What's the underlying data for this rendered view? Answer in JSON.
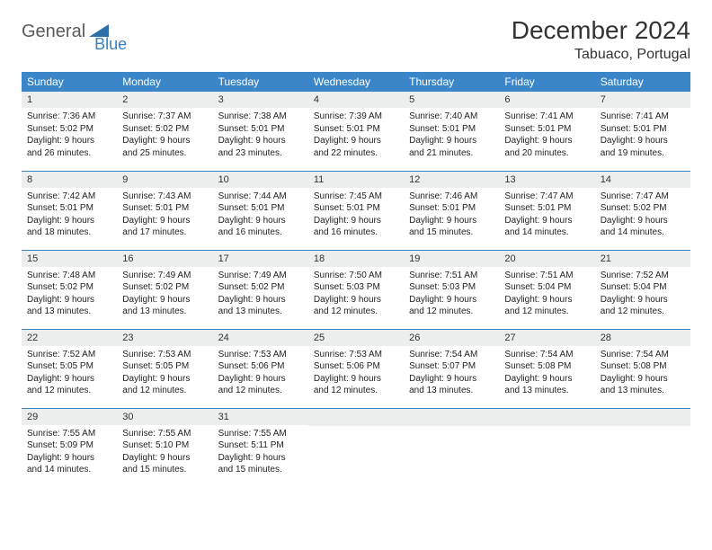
{
  "logo": {
    "text1": "General",
    "text2": "Blue"
  },
  "title": "December 2024",
  "location": "Tabuaco, Portugal",
  "colors": {
    "header_bg": "#3a86c8",
    "header_text": "#ffffff",
    "daynum_bg": "#eceded",
    "border": "#3a7fbf",
    "logo_gray": "#5a5a5a",
    "logo_blue": "#3a7fbf"
  },
  "weekdays": [
    "Sunday",
    "Monday",
    "Tuesday",
    "Wednesday",
    "Thursday",
    "Friday",
    "Saturday"
  ],
  "weeks": [
    [
      {
        "day": "1",
        "sunrise": "Sunrise: 7:36 AM",
        "sunset": "Sunset: 5:02 PM",
        "dl1": "Daylight: 9 hours",
        "dl2": "and 26 minutes."
      },
      {
        "day": "2",
        "sunrise": "Sunrise: 7:37 AM",
        "sunset": "Sunset: 5:02 PM",
        "dl1": "Daylight: 9 hours",
        "dl2": "and 25 minutes."
      },
      {
        "day": "3",
        "sunrise": "Sunrise: 7:38 AM",
        "sunset": "Sunset: 5:01 PM",
        "dl1": "Daylight: 9 hours",
        "dl2": "and 23 minutes."
      },
      {
        "day": "4",
        "sunrise": "Sunrise: 7:39 AM",
        "sunset": "Sunset: 5:01 PM",
        "dl1": "Daylight: 9 hours",
        "dl2": "and 22 minutes."
      },
      {
        "day": "5",
        "sunrise": "Sunrise: 7:40 AM",
        "sunset": "Sunset: 5:01 PM",
        "dl1": "Daylight: 9 hours",
        "dl2": "and 21 minutes."
      },
      {
        "day": "6",
        "sunrise": "Sunrise: 7:41 AM",
        "sunset": "Sunset: 5:01 PM",
        "dl1": "Daylight: 9 hours",
        "dl2": "and 20 minutes."
      },
      {
        "day": "7",
        "sunrise": "Sunrise: 7:41 AM",
        "sunset": "Sunset: 5:01 PM",
        "dl1": "Daylight: 9 hours",
        "dl2": "and 19 minutes."
      }
    ],
    [
      {
        "day": "8",
        "sunrise": "Sunrise: 7:42 AM",
        "sunset": "Sunset: 5:01 PM",
        "dl1": "Daylight: 9 hours",
        "dl2": "and 18 minutes."
      },
      {
        "day": "9",
        "sunrise": "Sunrise: 7:43 AM",
        "sunset": "Sunset: 5:01 PM",
        "dl1": "Daylight: 9 hours",
        "dl2": "and 17 minutes."
      },
      {
        "day": "10",
        "sunrise": "Sunrise: 7:44 AM",
        "sunset": "Sunset: 5:01 PM",
        "dl1": "Daylight: 9 hours",
        "dl2": "and 16 minutes."
      },
      {
        "day": "11",
        "sunrise": "Sunrise: 7:45 AM",
        "sunset": "Sunset: 5:01 PM",
        "dl1": "Daylight: 9 hours",
        "dl2": "and 16 minutes."
      },
      {
        "day": "12",
        "sunrise": "Sunrise: 7:46 AM",
        "sunset": "Sunset: 5:01 PM",
        "dl1": "Daylight: 9 hours",
        "dl2": "and 15 minutes."
      },
      {
        "day": "13",
        "sunrise": "Sunrise: 7:47 AM",
        "sunset": "Sunset: 5:01 PM",
        "dl1": "Daylight: 9 hours",
        "dl2": "and 14 minutes."
      },
      {
        "day": "14",
        "sunrise": "Sunrise: 7:47 AM",
        "sunset": "Sunset: 5:02 PM",
        "dl1": "Daylight: 9 hours",
        "dl2": "and 14 minutes."
      }
    ],
    [
      {
        "day": "15",
        "sunrise": "Sunrise: 7:48 AM",
        "sunset": "Sunset: 5:02 PM",
        "dl1": "Daylight: 9 hours",
        "dl2": "and 13 minutes."
      },
      {
        "day": "16",
        "sunrise": "Sunrise: 7:49 AM",
        "sunset": "Sunset: 5:02 PM",
        "dl1": "Daylight: 9 hours",
        "dl2": "and 13 minutes."
      },
      {
        "day": "17",
        "sunrise": "Sunrise: 7:49 AM",
        "sunset": "Sunset: 5:02 PM",
        "dl1": "Daylight: 9 hours",
        "dl2": "and 13 minutes."
      },
      {
        "day": "18",
        "sunrise": "Sunrise: 7:50 AM",
        "sunset": "Sunset: 5:03 PM",
        "dl1": "Daylight: 9 hours",
        "dl2": "and 12 minutes."
      },
      {
        "day": "19",
        "sunrise": "Sunrise: 7:51 AM",
        "sunset": "Sunset: 5:03 PM",
        "dl1": "Daylight: 9 hours",
        "dl2": "and 12 minutes."
      },
      {
        "day": "20",
        "sunrise": "Sunrise: 7:51 AM",
        "sunset": "Sunset: 5:04 PM",
        "dl1": "Daylight: 9 hours",
        "dl2": "and 12 minutes."
      },
      {
        "day": "21",
        "sunrise": "Sunrise: 7:52 AM",
        "sunset": "Sunset: 5:04 PM",
        "dl1": "Daylight: 9 hours",
        "dl2": "and 12 minutes."
      }
    ],
    [
      {
        "day": "22",
        "sunrise": "Sunrise: 7:52 AM",
        "sunset": "Sunset: 5:05 PM",
        "dl1": "Daylight: 9 hours",
        "dl2": "and 12 minutes."
      },
      {
        "day": "23",
        "sunrise": "Sunrise: 7:53 AM",
        "sunset": "Sunset: 5:05 PM",
        "dl1": "Daylight: 9 hours",
        "dl2": "and 12 minutes."
      },
      {
        "day": "24",
        "sunrise": "Sunrise: 7:53 AM",
        "sunset": "Sunset: 5:06 PM",
        "dl1": "Daylight: 9 hours",
        "dl2": "and 12 minutes."
      },
      {
        "day": "25",
        "sunrise": "Sunrise: 7:53 AM",
        "sunset": "Sunset: 5:06 PM",
        "dl1": "Daylight: 9 hours",
        "dl2": "and 12 minutes."
      },
      {
        "day": "26",
        "sunrise": "Sunrise: 7:54 AM",
        "sunset": "Sunset: 5:07 PM",
        "dl1": "Daylight: 9 hours",
        "dl2": "and 13 minutes."
      },
      {
        "day": "27",
        "sunrise": "Sunrise: 7:54 AM",
        "sunset": "Sunset: 5:08 PM",
        "dl1": "Daylight: 9 hours",
        "dl2": "and 13 minutes."
      },
      {
        "day": "28",
        "sunrise": "Sunrise: 7:54 AM",
        "sunset": "Sunset: 5:08 PM",
        "dl1": "Daylight: 9 hours",
        "dl2": "and 13 minutes."
      }
    ],
    [
      {
        "day": "29",
        "sunrise": "Sunrise: 7:55 AM",
        "sunset": "Sunset: 5:09 PM",
        "dl1": "Daylight: 9 hours",
        "dl2": "and 14 minutes."
      },
      {
        "day": "30",
        "sunrise": "Sunrise: 7:55 AM",
        "sunset": "Sunset: 5:10 PM",
        "dl1": "Daylight: 9 hours",
        "dl2": "and 15 minutes."
      },
      {
        "day": "31",
        "sunrise": "Sunrise: 7:55 AM",
        "sunset": "Sunset: 5:11 PM",
        "dl1": "Daylight: 9 hours",
        "dl2": "and 15 minutes."
      },
      null,
      null,
      null,
      null
    ]
  ]
}
